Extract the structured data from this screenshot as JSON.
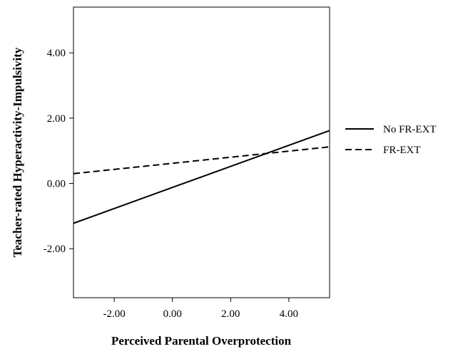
{
  "chart_data": {
    "type": "line",
    "title": "",
    "xlabel": "Perceived Parental Overprotection",
    "ylabel": "Teacher-rated Hyperactivity-Impulsivity",
    "xlim": [
      -3.4,
      5.4
    ],
    "ylim": [
      -3.5,
      5.4
    ],
    "xticks": [
      -2,
      0,
      2,
      4
    ],
    "xtick_labels": [
      "-2.00",
      "0.00",
      "2.00",
      "4.00"
    ],
    "yticks": [
      -2,
      0,
      2,
      4
    ],
    "ytick_labels": [
      "-2.00",
      "0.00",
      "2.00",
      "4.00"
    ],
    "grid": false,
    "legend_position": "right",
    "series": [
      {
        "name": "No FR-EXT",
        "style": "solid",
        "color": "#000000",
        "x": [
          -3.4,
          5.4
        ],
        "y": [
          -1.22,
          1.62
        ]
      },
      {
        "name": "FR-EXT",
        "style": "dashed",
        "color": "#000000",
        "x": [
          -3.4,
          5.4
        ],
        "y": [
          0.3,
          1.12
        ]
      }
    ]
  }
}
